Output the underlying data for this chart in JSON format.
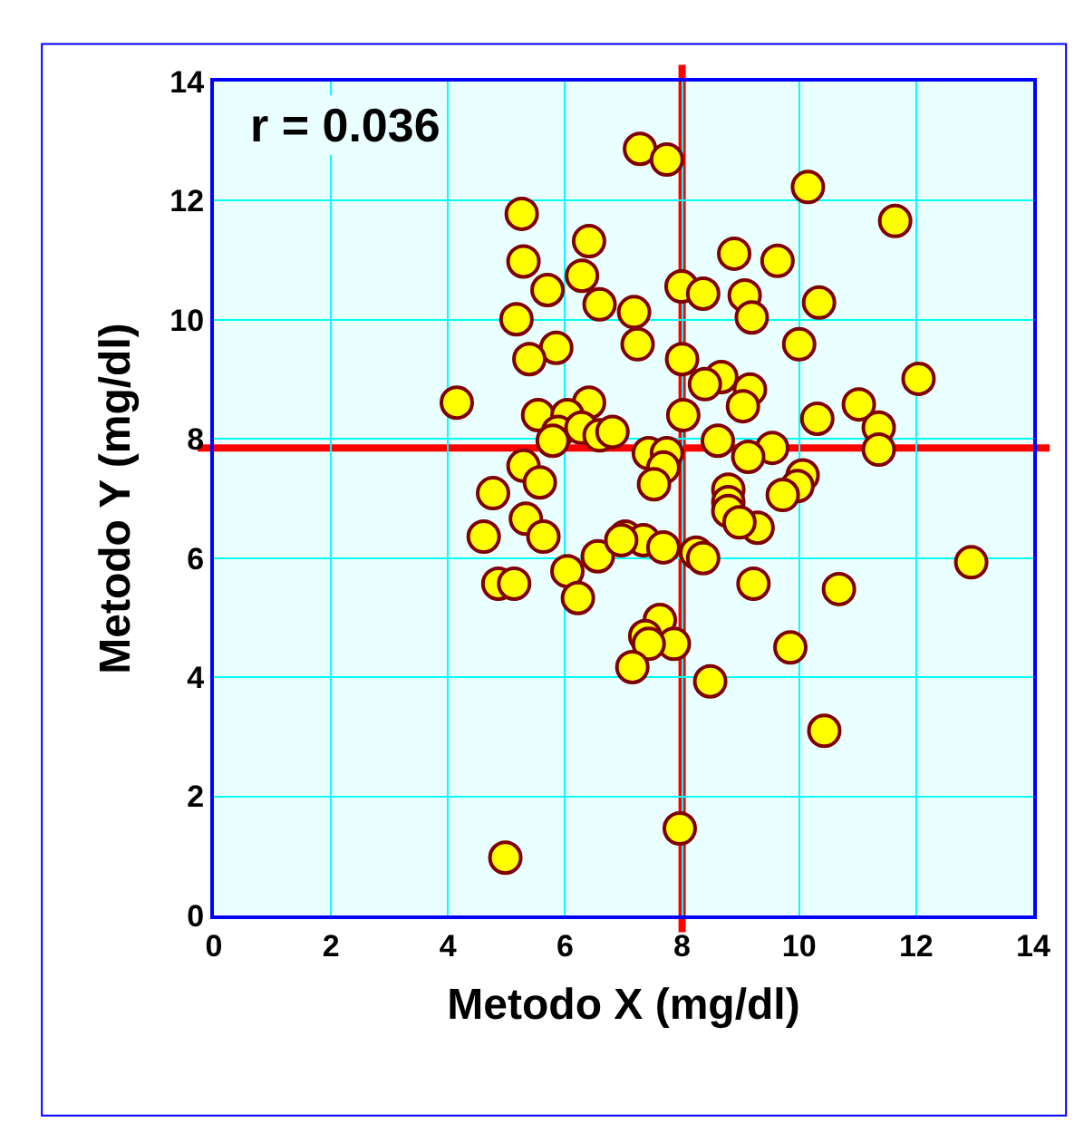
{
  "chart_data": {
    "type": "scatter",
    "xlabel": "Metodo X (mg/dl)",
    "ylabel": "Metodo Y (mg/dl)",
    "annotations": [
      "r = 0.036"
    ],
    "x": [
      7.28,
      7.74,
      10.15,
      11.64,
      5.26,
      6.41,
      8.89,
      9.63,
      5.29,
      5.7,
      6.29,
      7.99,
      8.36,
      9.07,
      7.18,
      6.59,
      5.17,
      9.19,
      10.34,
      10.0,
      7.24,
      5.85,
      5.39,
      8.0,
      12.04,
      8.67,
      8.39,
      9.16,
      4.15,
      6.41,
      9.04,
      11.02,
      5.54,
      6.04,
      8.02,
      10.31,
      5.88,
      6.28,
      6.59,
      6.81,
      11.36,
      5.79,
      8.61,
      9.54,
      9.13,
      7.43,
      7.74,
      11.36,
      5.29,
      5.57,
      7.68,
      7.52,
      10.06,
      9.97,
      8.79,
      9.72,
      8.79,
      4.77,
      5.33,
      8.79,
      4.61,
      5.63,
      7.03,
      7.34,
      9.29,
      8.98,
      8.24,
      8.36,
      6.56,
      6.96,
      7.68,
      12.94,
      4.86,
      5.13,
      10.68,
      9.22,
      6.04,
      6.22,
      7.62,
      7.37,
      7.86,
      7.43,
      7.15,
      9.85,
      8.48,
      10.43,
      7.96,
      4.98
    ],
    "series": [
      {
        "color": "#ffff00",
        "values": [
          12.87,
          12.69,
          12.23,
          11.66,
          11.78,
          11.32,
          11.11,
          10.99,
          10.98,
          10.5,
          10.74,
          10.56,
          10.44,
          10.41,
          10.13,
          10.26,
          10.01,
          10.04,
          10.29,
          9.59,
          9.59,
          9.53,
          9.34,
          9.34,
          9.01,
          9.04,
          8.92,
          8.83,
          8.61,
          8.61,
          8.55,
          8.58,
          8.4,
          8.4,
          8.4,
          8.34,
          8.12,
          8.19,
          8.06,
          8.12,
          8.19,
          7.97,
          7.97,
          7.85,
          7.7,
          7.76,
          7.76,
          7.82,
          7.55,
          7.27,
          7.52,
          7.24,
          7.39,
          7.21,
          7.15,
          7.06,
          6.94,
          7.09,
          6.66,
          6.79,
          6.36,
          6.36,
          6.36,
          6.3,
          6.51,
          6.6,
          6.09,
          6.0,
          6.03,
          6.3,
          6.18,
          5.93,
          5.57,
          5.57,
          5.48,
          5.57,
          5.78,
          5.33,
          4.96,
          4.69,
          4.56,
          4.56,
          4.17,
          4.5,
          3.93,
          3.1,
          1.46,
          0.97
        ]
      }
    ],
    "xlim": [
      0,
      14
    ],
    "xticks": [
      0,
      2,
      4,
      6,
      8,
      10,
      12,
      14
    ],
    "ylim": [
      0,
      14
    ],
    "yticks": [
      0,
      2,
      4,
      6,
      8,
      10,
      12,
      14
    ],
    "ref_lines": [
      {
        "axis": "x",
        "value": 8,
        "color": "#ff0000"
      },
      {
        "axis": "y",
        "value": 7.85,
        "color": "#ff0000"
      }
    ],
    "grid": true,
    "marker": "circle"
  }
}
